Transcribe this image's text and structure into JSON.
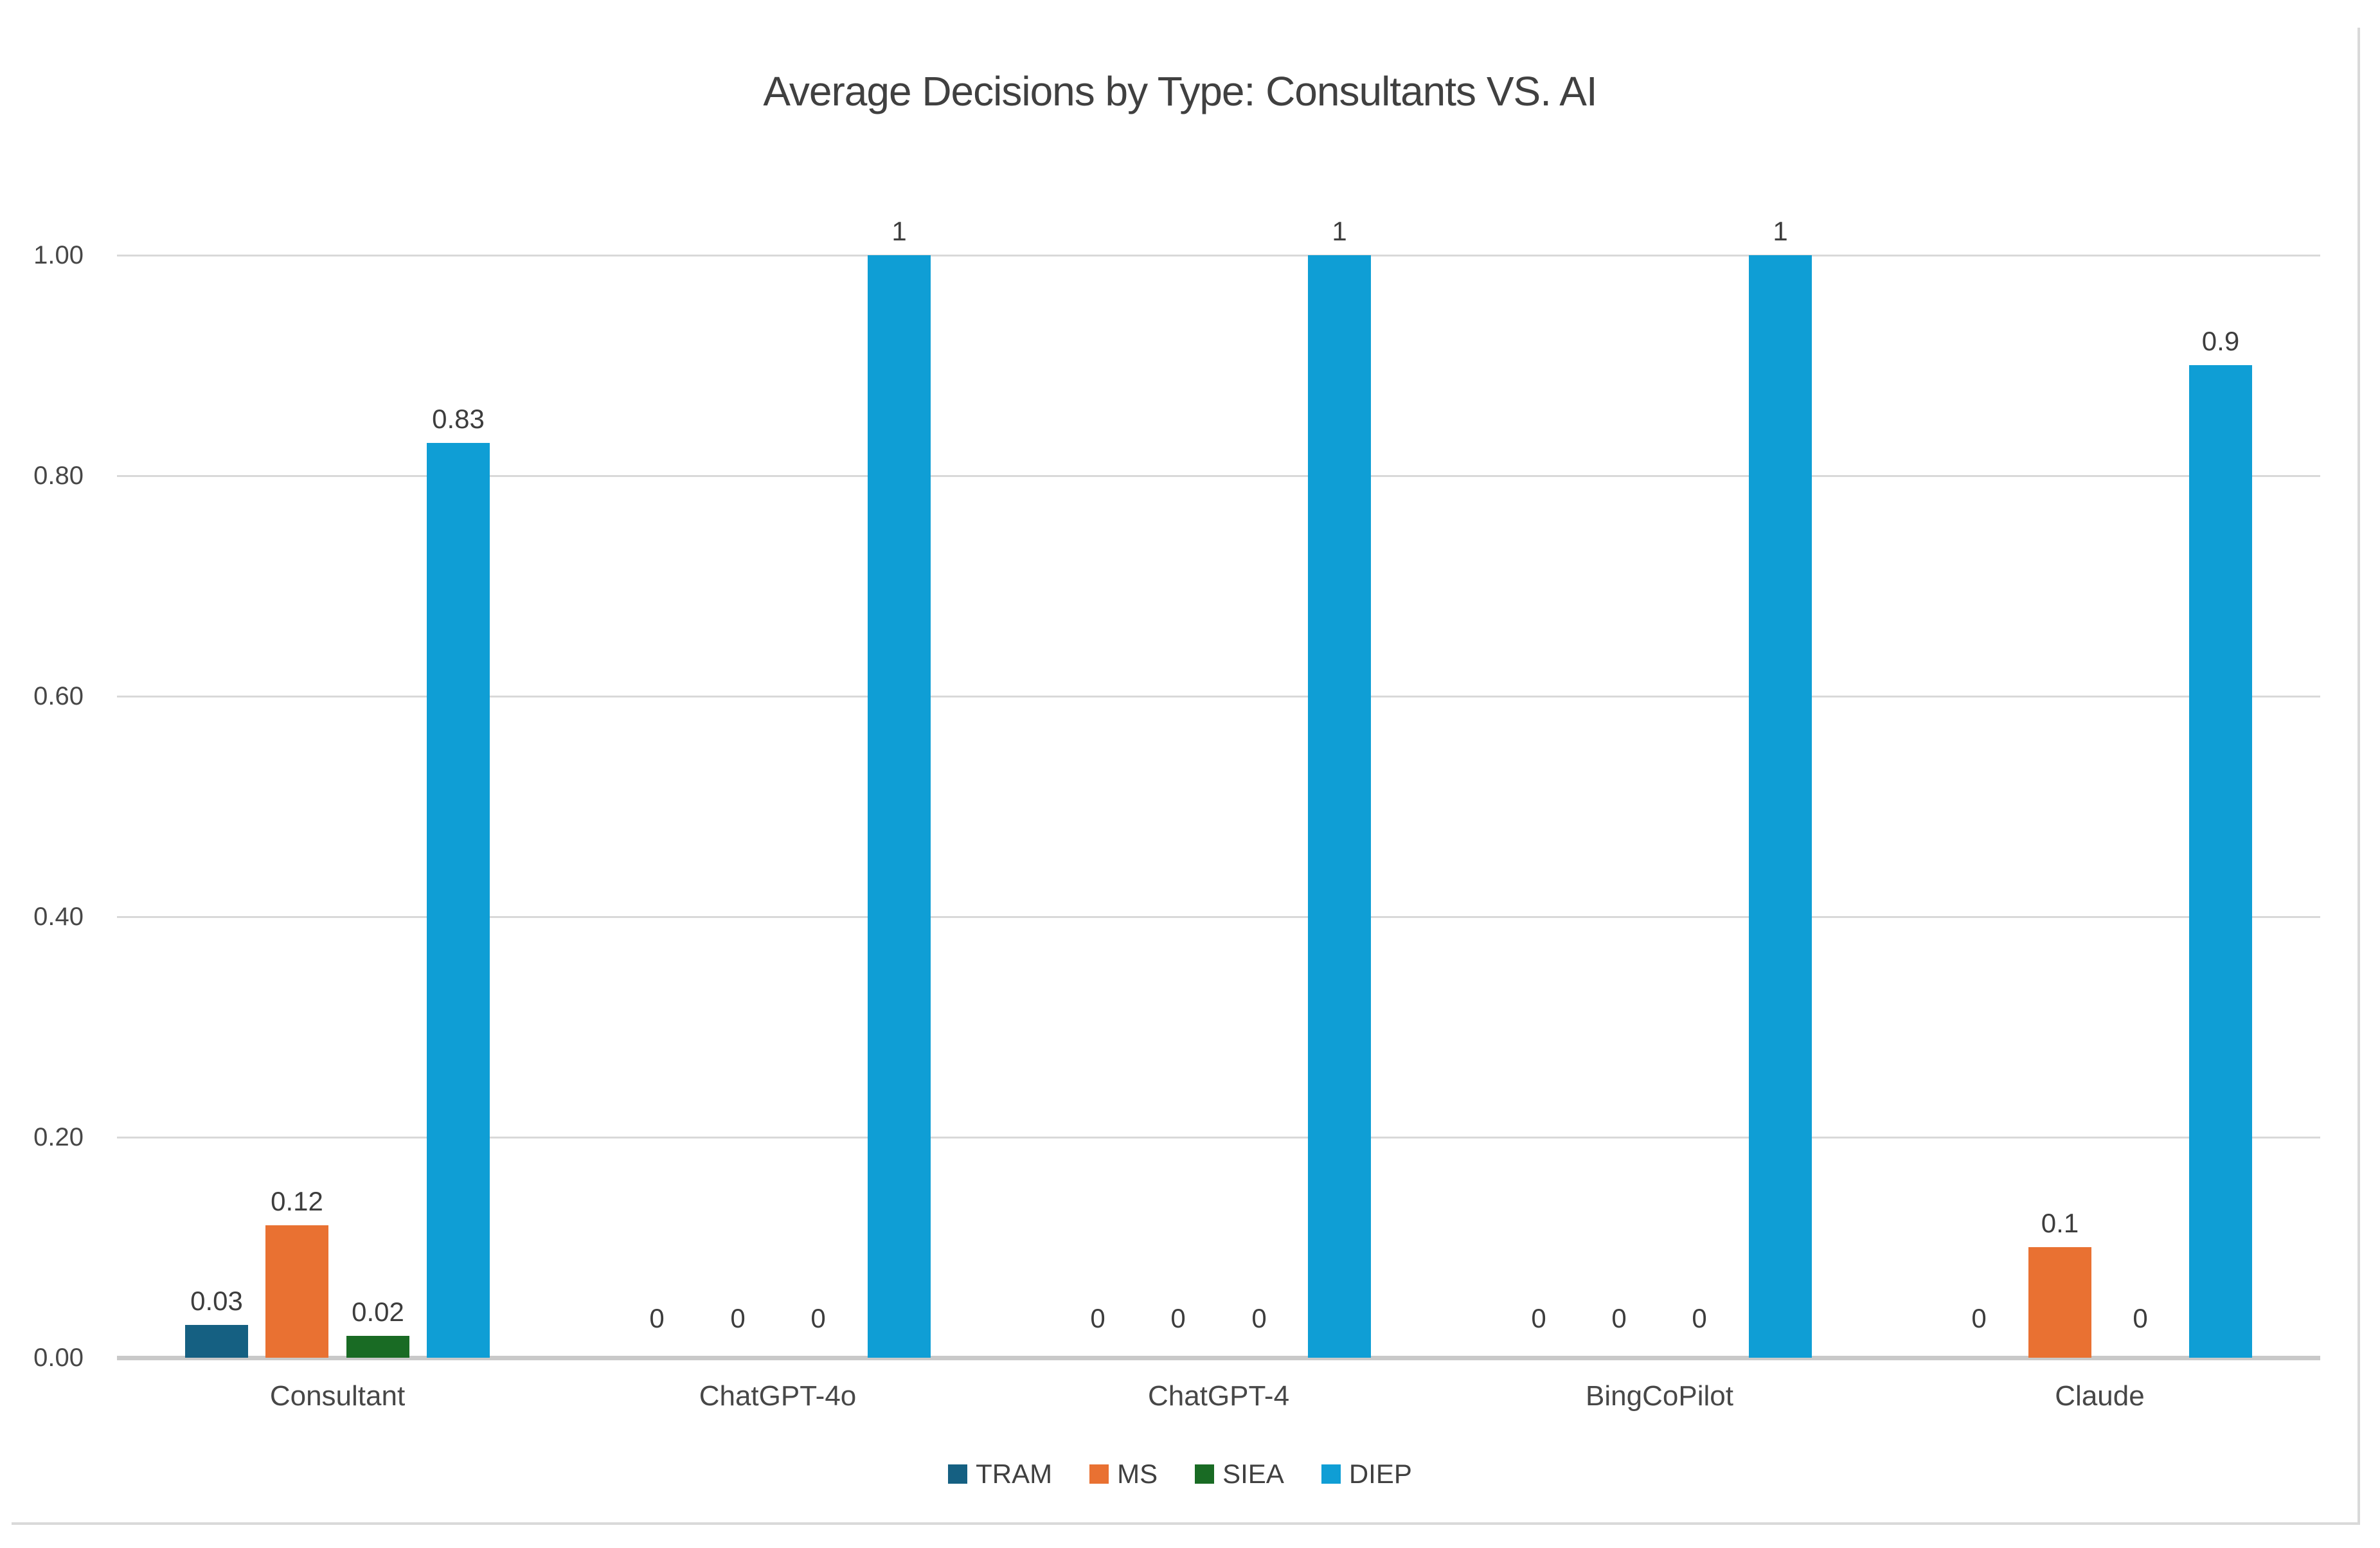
{
  "chart_data": {
    "type": "bar",
    "title": "Average Decisions by Type: Consultants VS. AI",
    "categories": [
      "Consultant",
      "ChatGPT-4o",
      "ChatGPT-4",
      "BingCoPilot",
      "Claude"
    ],
    "series": [
      {
        "name": "TRAM",
        "color": "#156082",
        "values": [
          0.03,
          0,
          0,
          0,
          0
        ],
        "labels": [
          "0.03",
          "0",
          "0",
          "0",
          "0"
        ]
      },
      {
        "name": "MS",
        "color": "#E97132",
        "values": [
          0.12,
          0,
          0,
          0,
          0.1
        ],
        "labels": [
          "0.12",
          "0",
          "0",
          "0",
          "0.1"
        ]
      },
      {
        "name": "SIEA",
        "color": "#196B24",
        "values": [
          0.02,
          0,
          0,
          0,
          0
        ],
        "labels": [
          "0.02",
          "0",
          "0",
          "0",
          "0"
        ]
      },
      {
        "name": "DIEP",
        "color": "#0F9ED5",
        "values": [
          0.83,
          1,
          1,
          1,
          0.9
        ],
        "labels": [
          "0.83",
          "1",
          "1",
          "1",
          "0.9"
        ]
      }
    ],
    "yticks": [
      {
        "value": 0.0,
        "label": "0.00"
      },
      {
        "value": 0.2,
        "label": "0.20"
      },
      {
        "value": 0.4,
        "label": "0.40"
      },
      {
        "value": 0.6,
        "label": "0.60"
      },
      {
        "value": 0.8,
        "label": "0.80"
      },
      {
        "value": 1.0,
        "label": "1.00"
      }
    ],
    "ylim": [
      0,
      1
    ],
    "grid": true,
    "legend_position": "bottom"
  },
  "colors": {
    "gridline": "#D9D9D9",
    "axis_line": "#C9C9C9",
    "frame_line": "#D9D9D9",
    "text": "#404040"
  }
}
